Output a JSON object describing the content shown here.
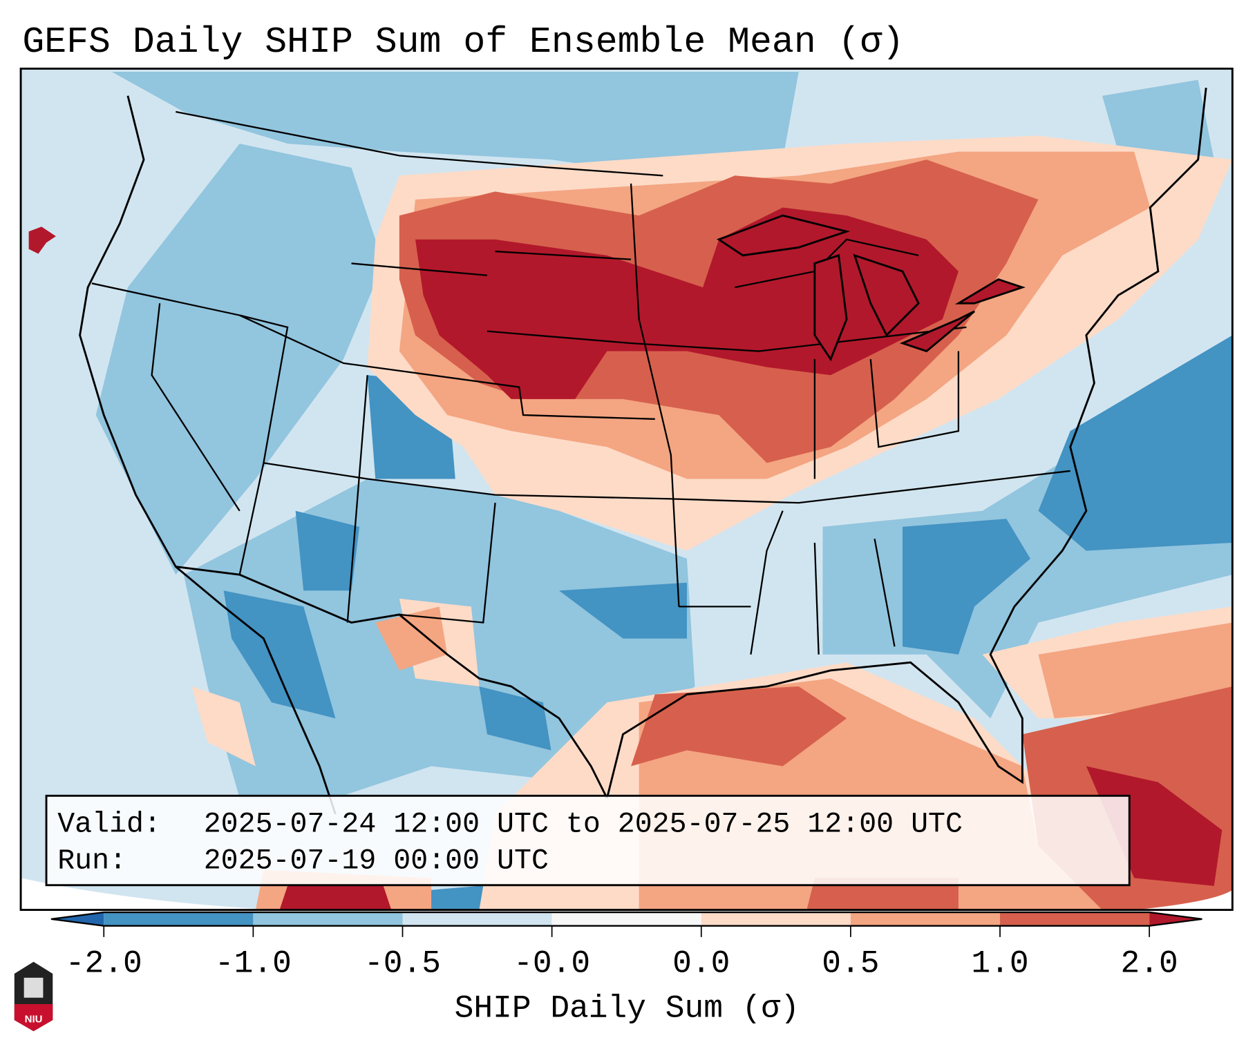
{
  "title": "GEFS Daily SHIP Sum of Ensemble Mean (σ)",
  "info_box": {
    "valid_label": "Valid:",
    "valid_value": "2025-07-24 12:00 UTC to 2025-07-25 12:00 UTC",
    "run_label": "Run:",
    "run_value": "2025-07-19 00:00 UTC"
  },
  "colorbar": {
    "label": "SHIP Daily Sum (σ)",
    "ticks": [
      "-2.0",
      "-1.0",
      "-0.5",
      "-0.0",
      "0.0",
      "0.5",
      "1.0",
      "2.0"
    ],
    "under_color": "#2166ac",
    "over_color": "#b2182b",
    "colors": [
      "#4393c3",
      "#92c5de",
      "#d1e5f0",
      "#f7f7f7",
      "#fddbc7",
      "#f4a582",
      "#d6604d"
    ]
  },
  "logo": {
    "text": "NIU"
  }
}
